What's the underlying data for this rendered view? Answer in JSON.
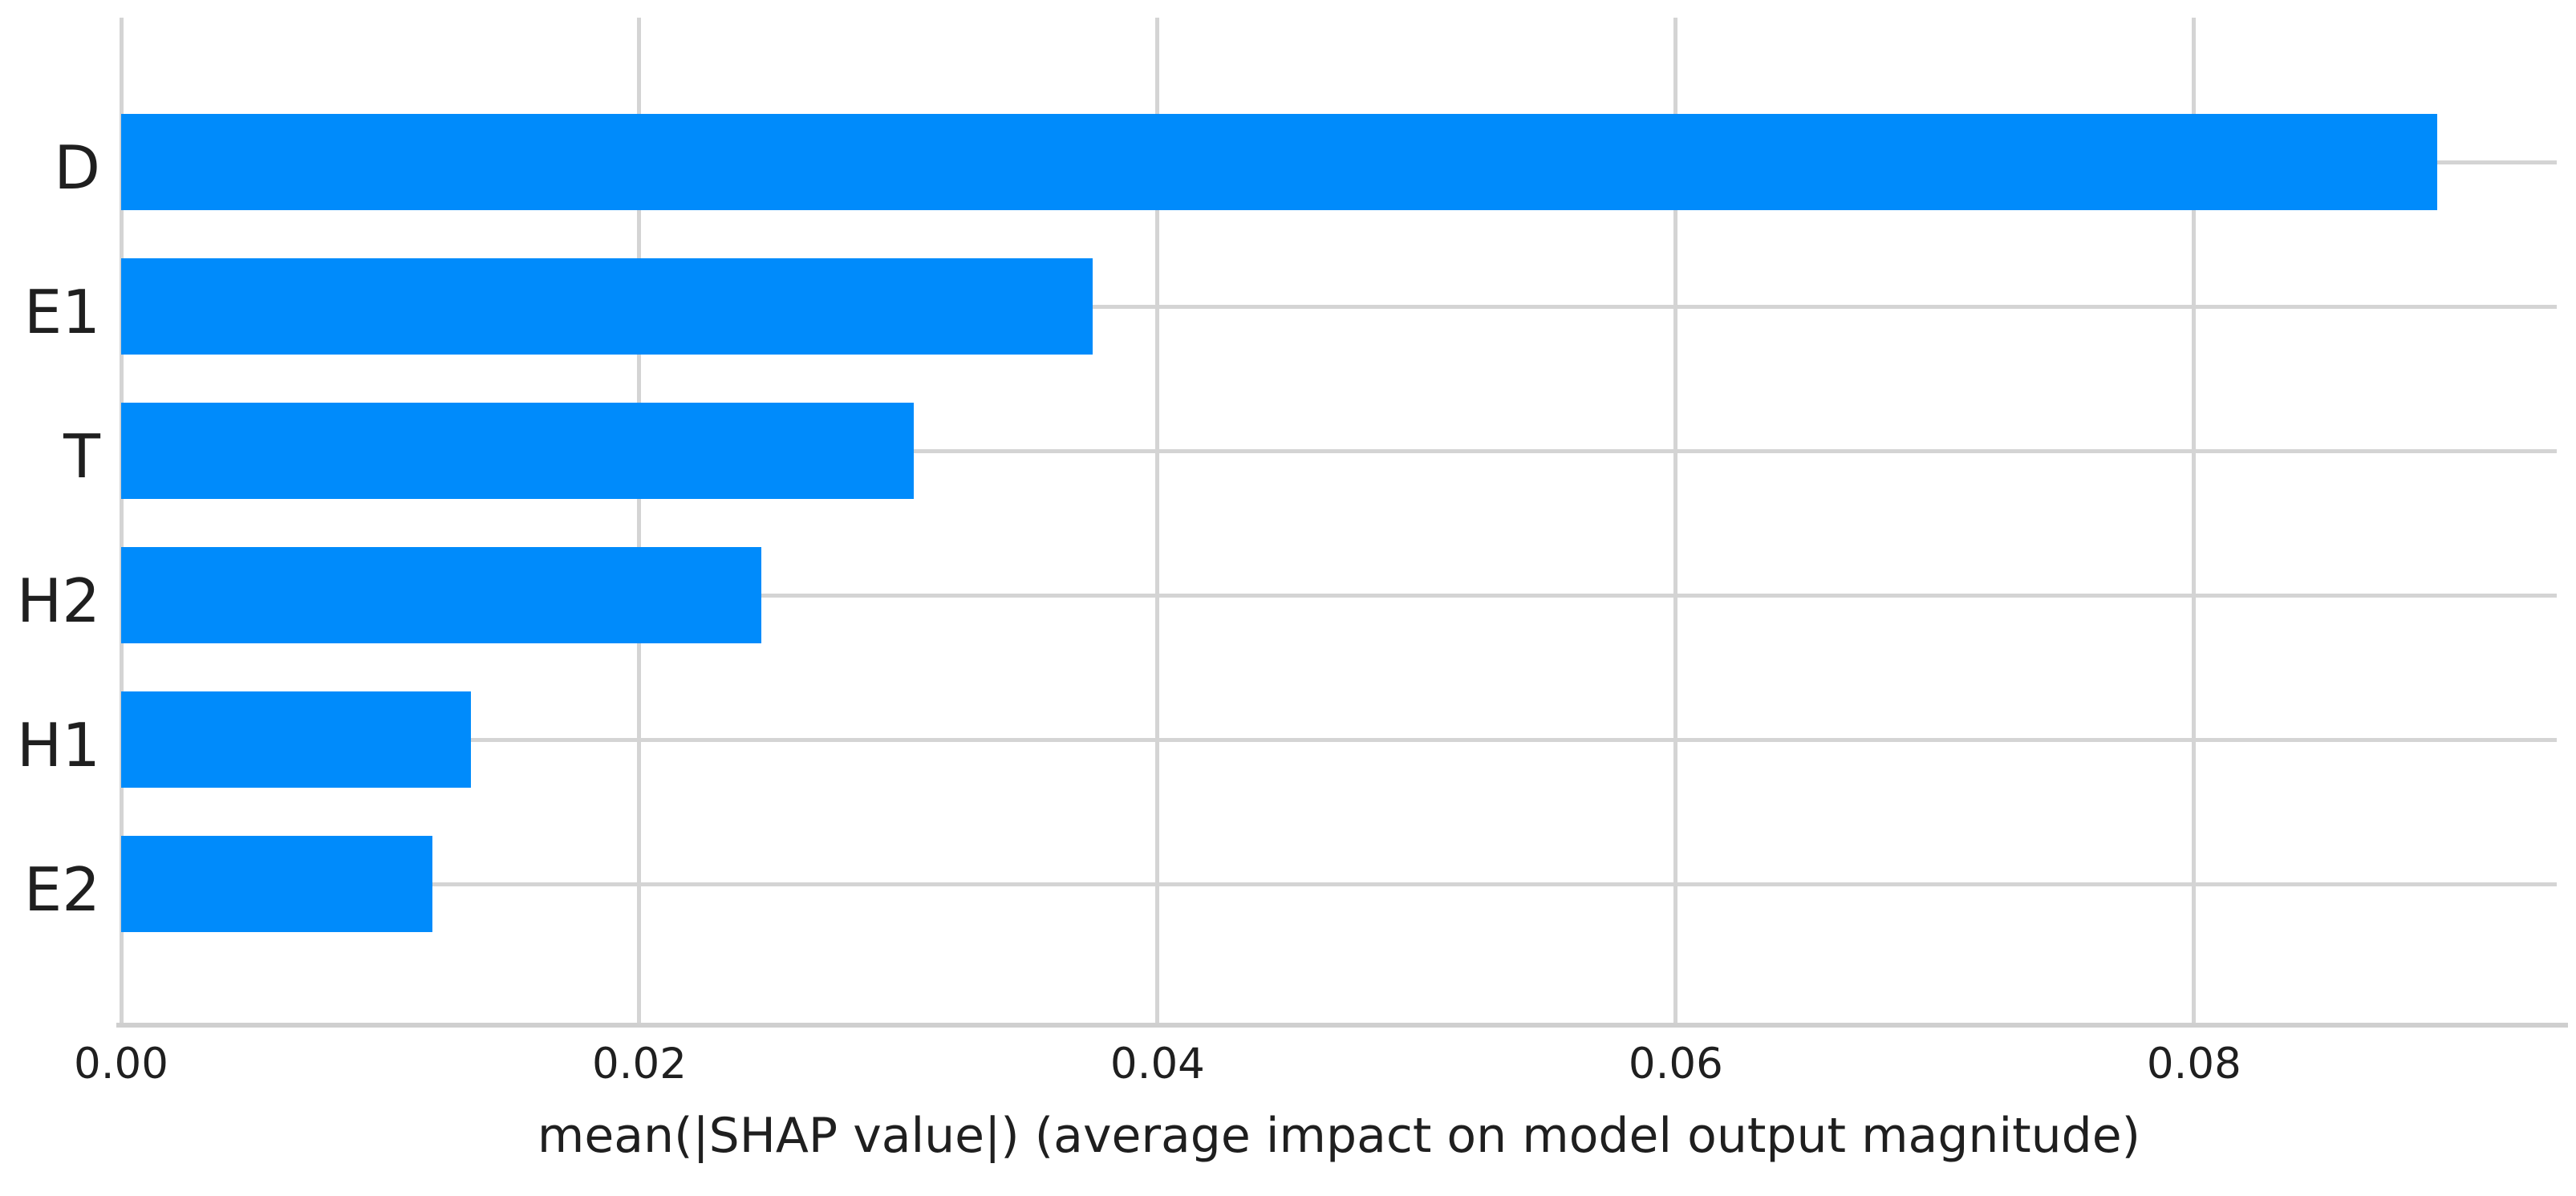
{
  "chart_data": {
    "type": "bar",
    "orientation": "horizontal",
    "categories": [
      "D",
      "E1",
      "T",
      "H2",
      "H1",
      "E2"
    ],
    "values": [
      0.0894,
      0.0375,
      0.0306,
      0.0247,
      0.0135,
      0.012
    ],
    "xlabel": "mean(|SHAP value|) (average impact on model output magnitude)",
    "x_tick_labels": [
      "0.00",
      "0.02",
      "0.04",
      "0.06",
      "0.08"
    ],
    "x_tick_values": [
      0.0,
      0.02,
      0.04,
      0.06,
      0.08
    ],
    "xlim": [
      0,
      0.094
    ],
    "grid": "on",
    "legend": "none",
    "colors": {
      "bar": "#008bfb",
      "grid": "#d4d4d4",
      "axis_line": "#cfcfcf",
      "text": "#1f1f1f"
    }
  }
}
